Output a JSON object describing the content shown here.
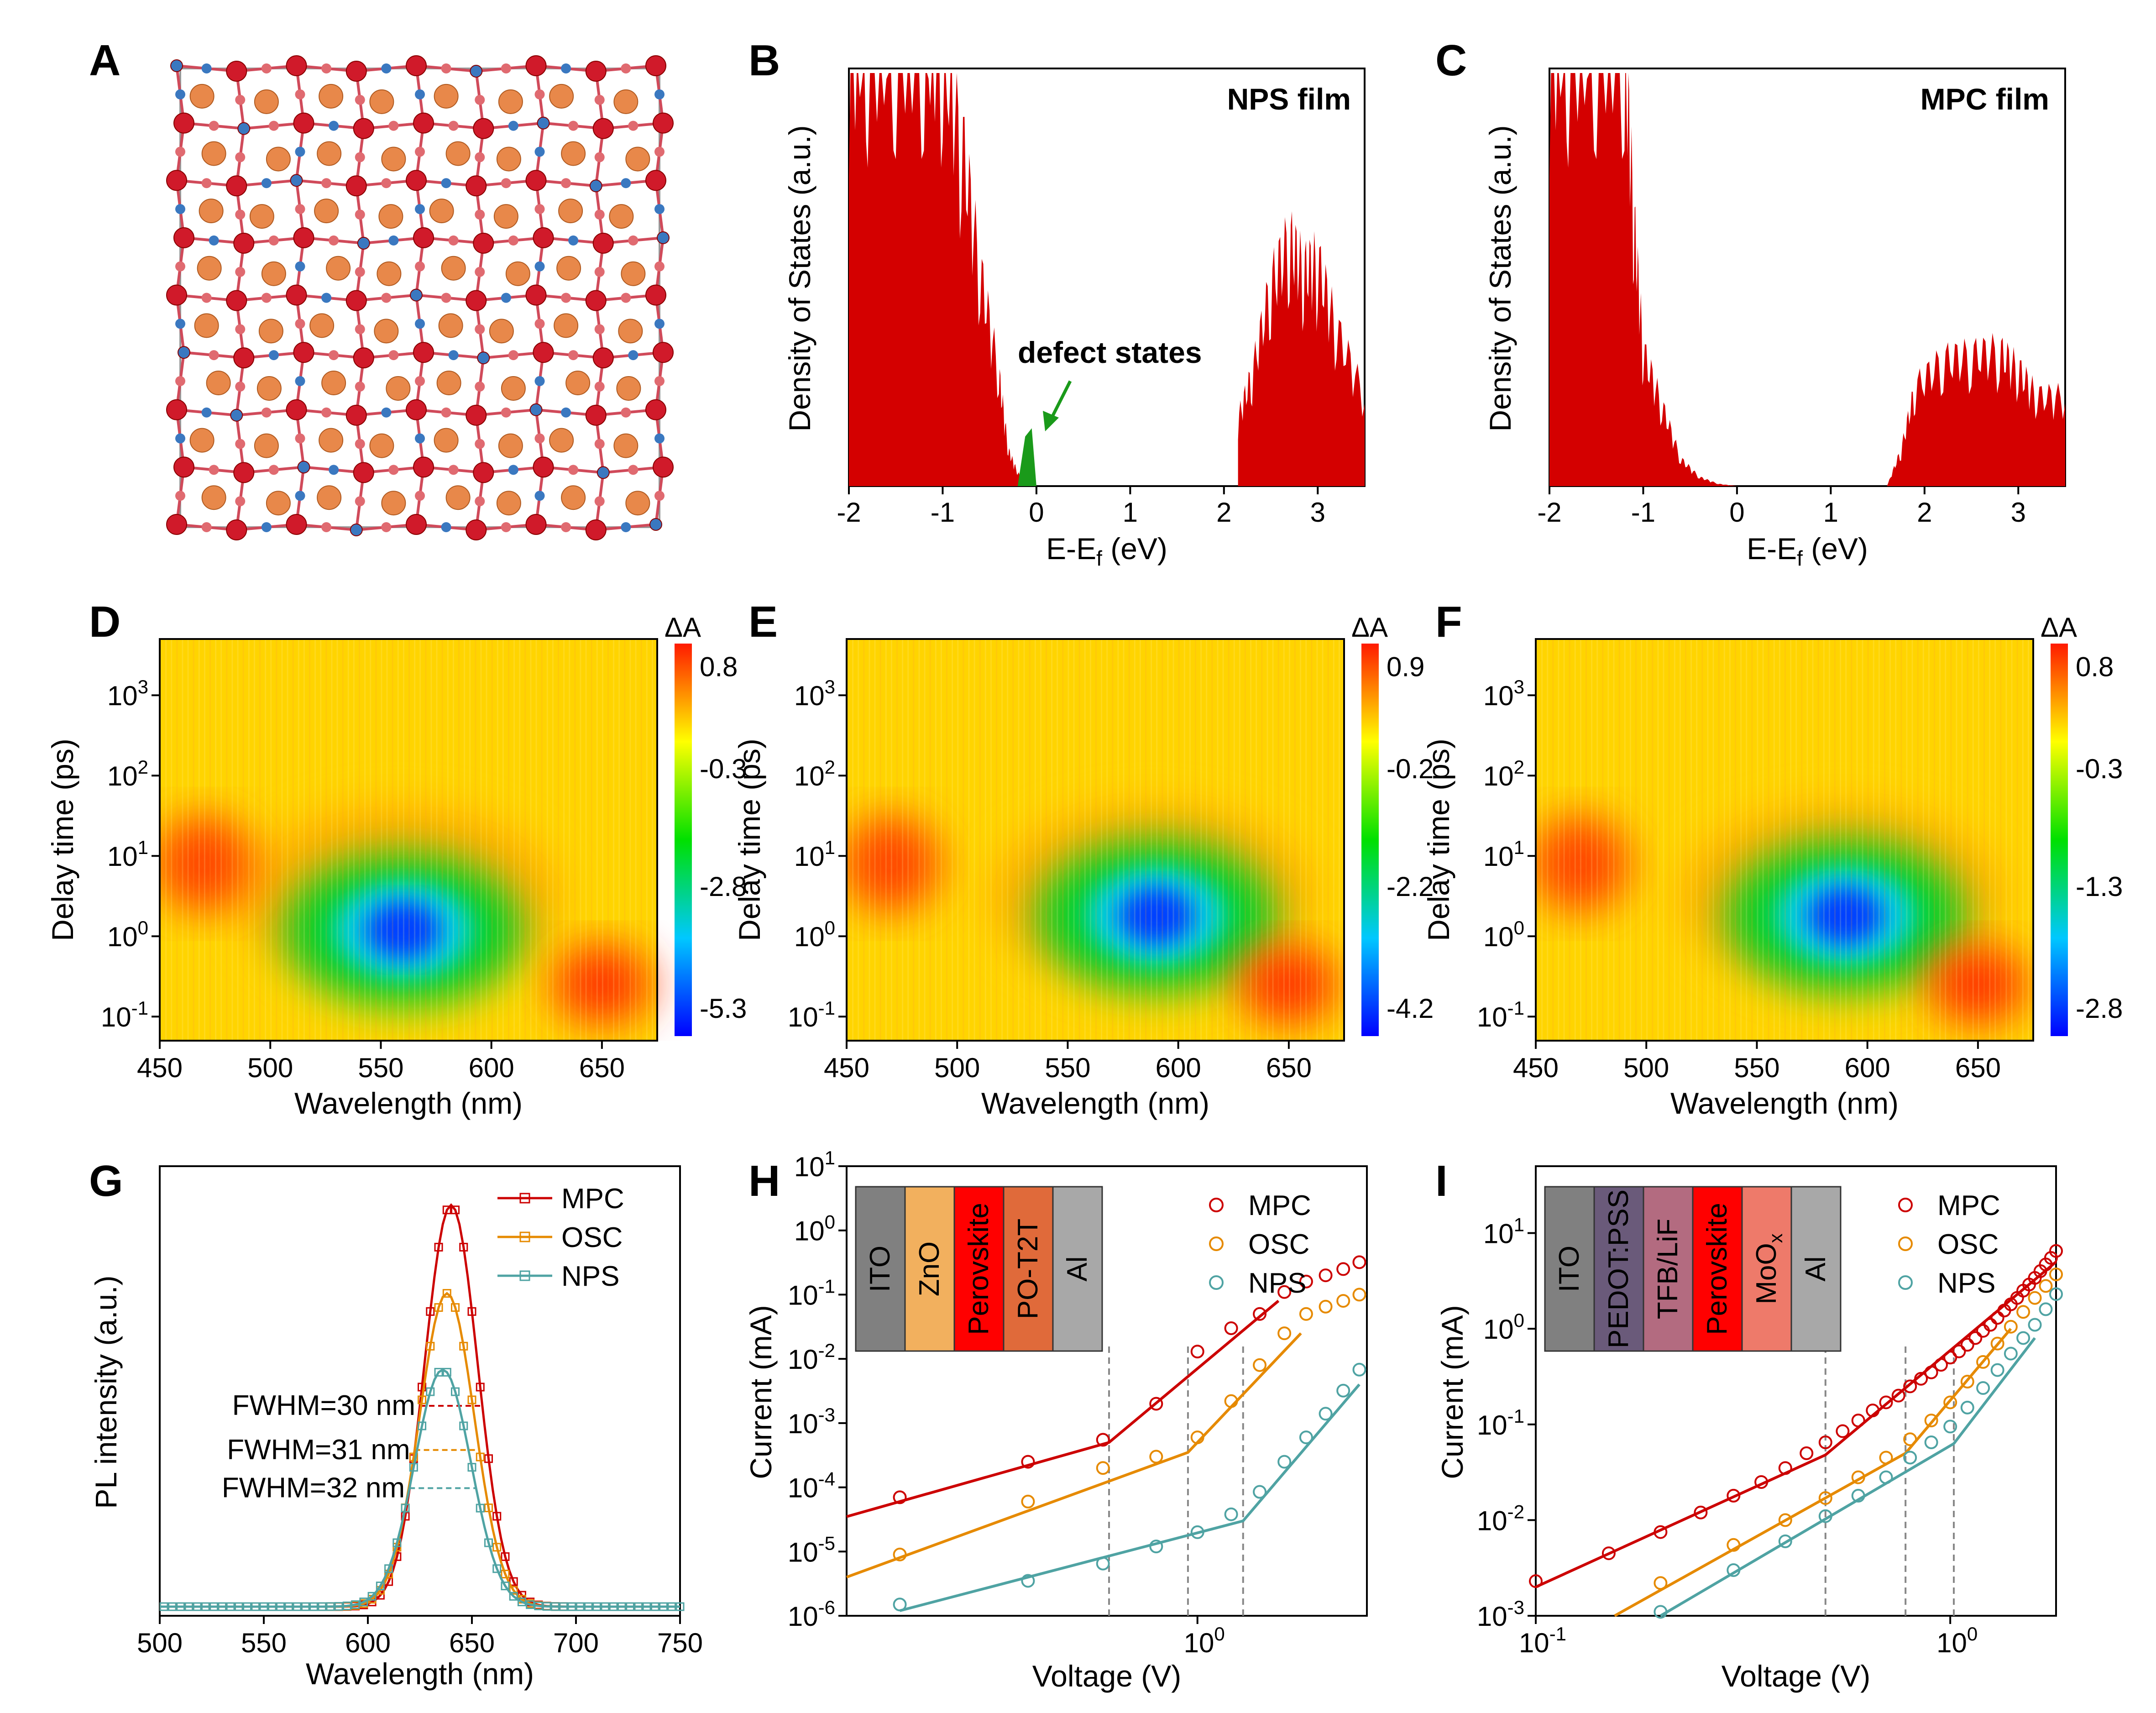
{
  "colors": {
    "red": "#cc0000",
    "orange": "#e68a00",
    "teal": "#4fa3a3",
    "green": "#1a9a1a",
    "dos_fill": "#d40000"
  },
  "chart_data": [
    {
      "panel": "A",
      "type": "other",
      "description_icon": "atomic-structure-image"
    },
    {
      "panel": "B",
      "type": "area",
      "inset_label": "NPS film",
      "annotation": "defect states",
      "xlabel": "E-E_f (eV)",
      "ylabel": "Density of States (a.u.)",
      "xlim": [
        -2,
        3.5
      ],
      "xticks": [
        "-2",
        "-1",
        "0",
        "1",
        "2",
        "3"
      ],
      "series": [
        {
          "x": [
            -2.0,
            -1.8,
            -1.5,
            -1.2,
            -1.0,
            -0.8,
            -0.6,
            -0.4,
            -0.3,
            -0.2,
            -0.1
          ],
          "y": [
            1.0,
            1.0,
            1.0,
            1.0,
            1.0,
            0.78,
            0.48,
            0.25,
            0.08,
            0.03,
            0.0
          ]
        },
        {
          "x": [
            2.15,
            2.3,
            2.5,
            2.7,
            2.85,
            3.0,
            3.2,
            3.5
          ],
          "y": [
            0.15,
            0.25,
            0.45,
            0.55,
            0.48,
            0.5,
            0.35,
            0.2
          ]
        }
      ],
      "defect": {
        "x": [
          -0.2,
          -0.12,
          -0.05,
          0.0
        ],
        "y": [
          0.0,
          0.12,
          0.14,
          0.0
        ]
      }
    },
    {
      "panel": "C",
      "type": "area",
      "inset_label": "MPC film",
      "xlabel": "E-E_f (eV)",
      "ylabel": "Density of States (a.u.)",
      "xlim": [
        -2,
        3.5
      ],
      "xticks": [
        "-2",
        "-1",
        "0",
        "1",
        "2",
        "3"
      ],
      "series": [
        {
          "x": [
            -2.0,
            -1.8,
            -1.5,
            -1.2,
            -1.1,
            -1.0,
            -0.8,
            -0.6,
            -0.4,
            -0.2,
            0.0
          ],
          "y": [
            1.0,
            1.0,
            1.0,
            1.0,
            0.6,
            0.3,
            0.18,
            0.06,
            0.02,
            0.005,
            0.0
          ]
        },
        {
          "x": [
            1.6,
            1.75,
            1.9,
            2.2,
            2.5,
            2.8,
            3.0,
            3.2,
            3.5
          ],
          "y": [
            0.0,
            0.08,
            0.22,
            0.28,
            0.29,
            0.3,
            0.26,
            0.2,
            0.2
          ]
        }
      ]
    },
    {
      "panel": "D",
      "type": "heatmap",
      "xlabel": "Wavelength (nm)",
      "ylabel": "Delay time (ps)",
      "colorbar_title": "ΔA",
      "colorbar_ticks": [
        "0.8",
        "-0.3",
        "-2.8",
        "-5.3"
      ],
      "xticks": [
        "450",
        "500",
        "550",
        "600",
        "650"
      ],
      "center_nm": 560,
      "center_ps": 1.2
    },
    {
      "panel": "E",
      "type": "heatmap",
      "xlabel": "Wavelength (nm)",
      "ylabel": "Delay time (ps)",
      "colorbar_title": "ΔA",
      "colorbar_ticks": [
        "0.9",
        "-0.2",
        "-2.2",
        "-4.2"
      ],
      "xticks": [
        "450",
        "500",
        "550",
        "600",
        "650"
      ],
      "center_nm": 590,
      "center_ps": 1.8
    },
    {
      "panel": "F",
      "type": "heatmap",
      "xlabel": "Wavelength (nm)",
      "ylabel": "Delay time (ps)",
      "colorbar_title": "ΔA",
      "colorbar_ticks": [
        "0.8",
        "-0.3",
        "-1.3",
        "-2.8"
      ],
      "xticks": [
        "450",
        "500",
        "550",
        "600",
        "650"
      ],
      "center_nm": 590,
      "center_ps": 1.8
    },
    {
      "panel": "G",
      "type": "line",
      "xlabel": "Wavelength (nm)",
      "ylabel": "PL intensity (a.u.)",
      "xlim": [
        500,
        750
      ],
      "xticks": [
        "500",
        "550",
        "600",
        "650",
        "700",
        "750"
      ],
      "series": [
        {
          "name": "MPC",
          "peak": 640,
          "amp": 1.0,
          "fwhm": 30,
          "fwhm_label": "FWHM=30 nm"
        },
        {
          "name": "OSC",
          "peak": 638,
          "amp": 0.78,
          "fwhm": 31,
          "fwhm_label": "FWHM=31 nm"
        },
        {
          "name": "NPS",
          "peak": 636,
          "amp": 0.59,
          "fwhm": 32,
          "fwhm_label": "FWHM=32 nm"
        }
      ]
    },
    {
      "panel": "H",
      "type": "scatter",
      "xlabel": "Voltage (V)",
      "ylabel": "Current (mA)",
      "xscale": "log",
      "yscale": "log",
      "xlim": [
        0.15,
        2.5
      ],
      "ylim": [
        1e-06,
        10
      ],
      "ytick_exponents": [
        "-6",
        "-5",
        "-4",
        "-3",
        "-2",
        "-1",
        "0",
        "1"
      ],
      "xtick_label": "10",
      "xtick_exponent": "0",
      "device_layers": [
        "ITO",
        "ZnO",
        "Perovskite",
        "PO-T2T",
        "Al"
      ],
      "device_colors": [
        "#808080",
        "#f2b05e",
        "#ff0000",
        "#e06a3a",
        "#a8a8a8"
      ],
      "series": [
        {
          "name": "MPC",
          "points": [
            [
              0.2,
              7e-05
            ],
            [
              0.4,
              0.00025
            ],
            [
              0.6,
              0.00055
            ],
            [
              0.8,
              0.002
            ],
            [
              1.0,
              0.013
            ],
            [
              1.2,
              0.03
            ],
            [
              1.4,
              0.05
            ],
            [
              1.6,
              0.11
            ],
            [
              1.8,
              0.16
            ],
            [
              2.0,
              0.2
            ],
            [
              2.2,
              0.25
            ],
            [
              2.4,
              0.32
            ]
          ],
          "fit": [
            [
              0.15,
              3.5e-05
            ],
            [
              0.62,
              0.0005
            ],
            [
              1.55,
              0.08
            ]
          ]
        },
        {
          "name": "OSC",
          "points": [
            [
              0.2,
              9e-06
            ],
            [
              0.4,
              6e-05
            ],
            [
              0.6,
              0.0002
            ],
            [
              0.8,
              0.0003
            ],
            [
              1.0,
              0.0006
            ],
            [
              1.2,
              0.0022
            ],
            [
              1.4,
              0.008
            ],
            [
              1.6,
              0.025
            ],
            [
              1.8,
              0.05
            ],
            [
              2.0,
              0.065
            ],
            [
              2.2,
              0.08
            ],
            [
              2.4,
              0.1
            ]
          ],
          "fit": [
            [
              0.15,
              4e-06
            ],
            [
              0.95,
              0.00035
            ],
            [
              1.75,
              0.025
            ]
          ]
        },
        {
          "name": "NPS",
          "points": [
            [
              0.2,
              1.5e-06
            ],
            [
              0.4,
              3.5e-06
            ],
            [
              0.6,
              6.5e-06
            ],
            [
              0.8,
              1.2e-05
            ],
            [
              1.0,
              2e-05
            ],
            [
              1.2,
              3.8e-05
            ],
            [
              1.4,
              8.5e-05
            ],
            [
              1.6,
              0.00025
            ],
            [
              1.8,
              0.0006
            ],
            [
              2.0,
              0.0014
            ],
            [
              2.2,
              0.0032
            ],
            [
              2.4,
              0.0068
            ]
          ],
          "fit": [
            [
              0.2,
              1.2e-06
            ],
            [
              1.28,
              3e-05
            ],
            [
              2.4,
              0.004
            ]
          ]
        }
      ],
      "knees": [
        0.62,
        0.95,
        1.28
      ]
    },
    {
      "panel": "I",
      "type": "scatter",
      "xlabel": "Voltage (V)",
      "ylabel": "Current (mA)",
      "xscale": "log",
      "yscale": "log",
      "xlim": [
        0.1,
        1.8
      ],
      "ylim": [
        0.001,
        50
      ],
      "xtick_labels": [
        "10",
        "10"
      ],
      "xtick_exponents": [
        "-1",
        "0"
      ],
      "ytick_exponents": [
        "-3",
        "-2",
        "-1",
        "0",
        "1"
      ],
      "device_layers": [
        "ITO",
        "PEDOT:PSS",
        "TFB/LiF",
        "Perovskite",
        "MoO",
        "Al"
      ],
      "moo_sub": "x",
      "device_colors": [
        "#808080",
        "#6a5a7a",
        "#b36b80",
        "#ff0000",
        "#ee7a6a",
        "#a8a8a8"
      ],
      "series": [
        {
          "name": "MPC",
          "points": [
            [
              0.1,
              0.0023
            ],
            [
              0.15,
              0.0045
            ],
            [
              0.2,
              0.0075
            ],
            [
              0.25,
              0.012
            ],
            [
              0.3,
              0.018
            ],
            [
              0.35,
              0.025
            ],
            [
              0.4,
              0.035
            ],
            [
              0.45,
              0.05
            ],
            [
              0.5,
              0.065
            ],
            [
              0.55,
              0.085
            ],
            [
              0.6,
              0.11
            ],
            [
              0.65,
              0.14
            ],
            [
              0.7,
              0.17
            ],
            [
              0.75,
              0.2
            ],
            [
              0.8,
              0.25
            ],
            [
              0.85,
              0.3
            ],
            [
              0.9,
              0.35
            ],
            [
              0.95,
              0.42
            ],
            [
              1.0,
              0.5
            ],
            [
              1.05,
              0.58
            ],
            [
              1.1,
              0.68
            ],
            [
              1.15,
              0.8
            ],
            [
              1.2,
              0.95
            ],
            [
              1.25,
              1.1
            ],
            [
              1.3,
              1.3
            ],
            [
              1.35,
              1.55
            ],
            [
              1.4,
              1.8
            ],
            [
              1.45,
              2.1
            ],
            [
              1.5,
              2.5
            ],
            [
              1.55,
              2.9
            ],
            [
              1.6,
              3.4
            ],
            [
              1.65,
              4.0
            ],
            [
              1.7,
              4.7
            ],
            [
              1.75,
              5.5
            ],
            [
              1.8,
              6.5
            ]
          ],
          "fit": [
            [
              0.1,
              0.002
            ],
            [
              0.5,
              0.048
            ],
            [
              1.8,
              5.0
            ]
          ]
        },
        {
          "name": "OSC",
          "points": [
            [
              0.2,
              0.0022
            ],
            [
              0.3,
              0.0055
            ],
            [
              0.4,
              0.01
            ],
            [
              0.5,
              0.017
            ],
            [
              0.6,
              0.028
            ],
            [
              0.7,
              0.045
            ],
            [
              0.8,
              0.07
            ],
            [
              0.9,
              0.11
            ],
            [
              1.0,
              0.17
            ],
            [
              1.1,
              0.28
            ],
            [
              1.2,
              0.45
            ],
            [
              1.3,
              0.7
            ],
            [
              1.4,
              1.05
            ],
            [
              1.5,
              1.5
            ],
            [
              1.6,
              2.1
            ],
            [
              1.7,
              2.8
            ],
            [
              1.8,
              3.7
            ]
          ],
          "fit": [
            [
              0.155,
              0.001
            ],
            [
              0.78,
              0.05
            ],
            [
              1.4,
              1.0
            ]
          ]
        },
        {
          "name": "NPS",
          "points": [
            [
              0.2,
              0.0011
            ],
            [
              0.3,
              0.003
            ],
            [
              0.4,
              0.006
            ],
            [
              0.5,
              0.011
            ],
            [
              0.6,
              0.018
            ],
            [
              0.7,
              0.028
            ],
            [
              0.8,
              0.045
            ],
            [
              0.9,
              0.065
            ],
            [
              1.0,
              0.095
            ],
            [
              1.1,
              0.15
            ],
            [
              1.2,
              0.24
            ],
            [
              1.3,
              0.37
            ],
            [
              1.4,
              0.55
            ],
            [
              1.5,
              0.8
            ],
            [
              1.6,
              1.1
            ],
            [
              1.7,
              1.6
            ],
            [
              1.8,
              2.3
            ]
          ],
          "fit": [
            [
              0.2,
              0.001
            ],
            [
              1.02,
              0.063
            ],
            [
              1.6,
              0.8
            ]
          ]
        }
      ],
      "knees": [
        0.5,
        0.78,
        1.02
      ]
    }
  ]
}
